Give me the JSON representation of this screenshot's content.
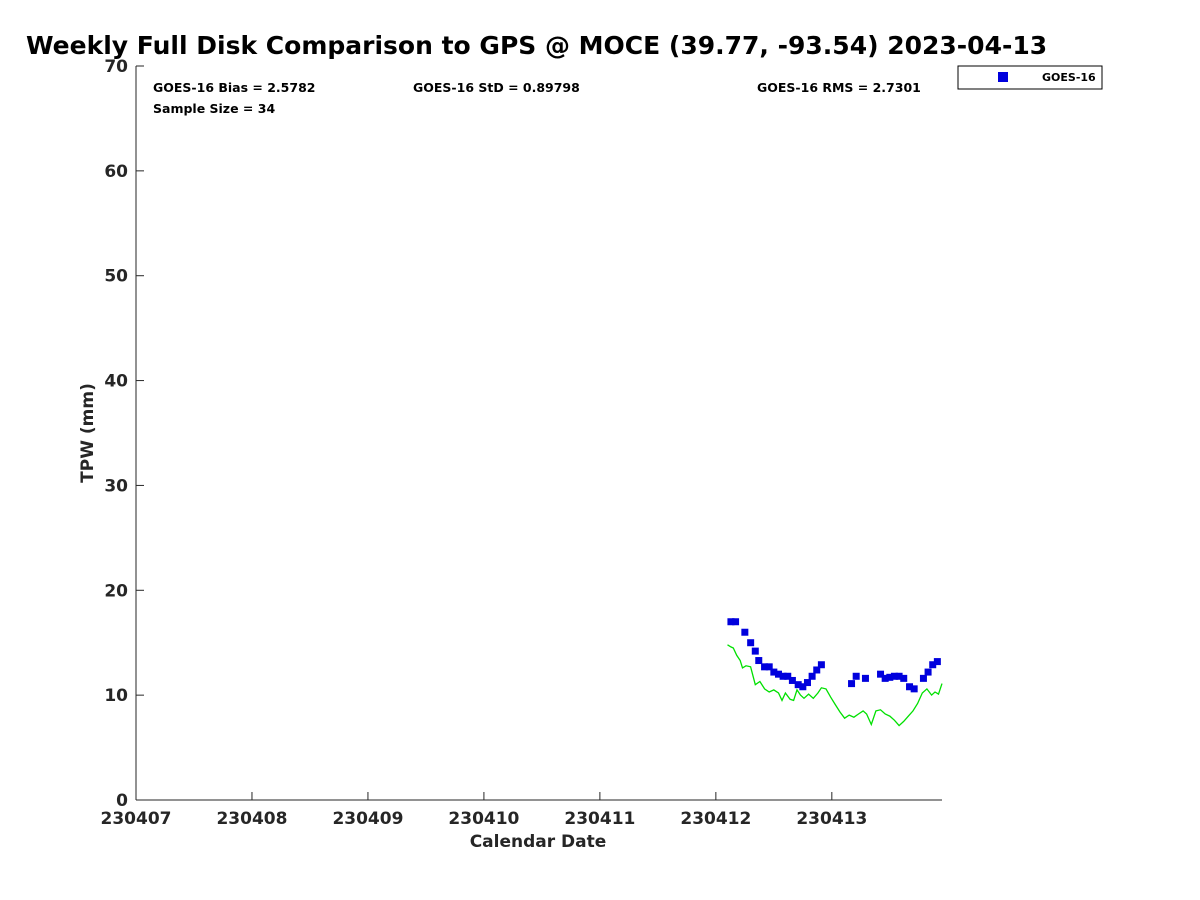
{
  "chart_data": {
    "type": "scatter",
    "title": "Weekly Full Disk Comparison to GPS @ MOCE (39.77, -93.54) 2023-04-13",
    "xlabel": "Calendar Date",
    "ylabel": "TPW (mm)",
    "xlim": [
      230407,
      230413.95
    ],
    "ylim": [
      0,
      70
    ],
    "x_ticks": [
      {
        "value": 230407,
        "label": "230407"
      },
      {
        "value": 230408,
        "label": "230408"
      },
      {
        "value": 230409,
        "label": "230409"
      },
      {
        "value": 230410,
        "label": "230410"
      },
      {
        "value": 230411,
        "label": "230411"
      },
      {
        "value": 230412,
        "label": "230412"
      },
      {
        "value": 230413,
        "label": "230413"
      }
    ],
    "y_ticks": [
      {
        "value": 0,
        "label": "0"
      },
      {
        "value": 10,
        "label": "10"
      },
      {
        "value": 20,
        "label": "20"
      },
      {
        "value": 30,
        "label": "30"
      },
      {
        "value": 40,
        "label": "40"
      },
      {
        "value": 50,
        "label": "50"
      },
      {
        "value": 60,
        "label": "60"
      },
      {
        "value": 70,
        "label": "70"
      }
    ],
    "grid": false,
    "legend": {
      "placement": "outside-top-right"
    },
    "stats": {
      "bias": "GOES-16 Bias = 2.5782",
      "std": "GOES-16 StD = 0.89798",
      "rms": "GOES-16 RMS = 2.7301",
      "sample": "Sample Size = 34"
    },
    "series": [
      {
        "name": "GOES-16",
        "color": "#0000dd",
        "marker": "square",
        "points": [
          [
            230412.13,
            17.0
          ],
          [
            230412.17,
            17.0
          ],
          [
            230412.25,
            16.0
          ],
          [
            230412.3,
            15.0
          ],
          [
            230412.34,
            14.2
          ],
          [
            230412.37,
            13.3
          ],
          [
            230412.42,
            12.7
          ],
          [
            230412.46,
            12.7
          ],
          [
            230412.5,
            12.2
          ],
          [
            230412.54,
            12.0
          ],
          [
            230412.58,
            11.8
          ],
          [
            230412.62,
            11.8
          ],
          [
            230412.66,
            11.4
          ],
          [
            230412.71,
            11.0
          ],
          [
            230412.75,
            10.8
          ],
          [
            230412.79,
            11.2
          ],
          [
            230412.83,
            11.8
          ],
          [
            230412.87,
            12.4
          ],
          [
            230412.91,
            12.9
          ],
          [
            230413.17,
            11.1
          ],
          [
            230413.21,
            11.8
          ],
          [
            230413.29,
            11.6
          ],
          [
            230413.42,
            12.0
          ],
          [
            230413.46,
            11.6
          ],
          [
            230413.5,
            11.7
          ],
          [
            230413.54,
            11.8
          ],
          [
            230413.58,
            11.8
          ],
          [
            230413.62,
            11.6
          ],
          [
            230413.67,
            10.8
          ],
          [
            230413.71,
            10.6
          ],
          [
            230413.79,
            11.6
          ],
          [
            230413.83,
            12.2
          ],
          [
            230413.87,
            12.9
          ],
          [
            230413.91,
            13.2
          ]
        ]
      },
      {
        "name": "",
        "color": "#00e000",
        "marker": "line",
        "points": [
          [
            230412.1,
            14.8
          ],
          [
            230412.13,
            14.6
          ],
          [
            230412.15,
            14.5
          ],
          [
            230412.18,
            13.8
          ],
          [
            230412.21,
            13.3
          ],
          [
            230412.23,
            12.6
          ],
          [
            230412.26,
            12.8
          ],
          [
            230412.3,
            12.7
          ],
          [
            230412.34,
            11.0
          ],
          [
            230412.38,
            11.3
          ],
          [
            230412.42,
            10.6
          ],
          [
            230412.46,
            10.3
          ],
          [
            230412.5,
            10.5
          ],
          [
            230412.54,
            10.2
          ],
          [
            230412.57,
            9.5
          ],
          [
            230412.6,
            10.2
          ],
          [
            230412.64,
            9.6
          ],
          [
            230412.67,
            9.5
          ],
          [
            230412.7,
            10.5
          ],
          [
            230412.73,
            10.0
          ],
          [
            230412.76,
            9.7
          ],
          [
            230412.8,
            10.1
          ],
          [
            230412.84,
            9.7
          ],
          [
            230412.88,
            10.2
          ],
          [
            230412.91,
            10.7
          ],
          [
            230412.95,
            10.6
          ],
          [
            230412.99,
            9.8
          ],
          [
            230413.03,
            9.1
          ],
          [
            230413.07,
            8.4
          ],
          [
            230413.11,
            7.8
          ],
          [
            230413.15,
            8.1
          ],
          [
            230413.19,
            7.9
          ],
          [
            230413.23,
            8.2
          ],
          [
            230413.27,
            8.5
          ],
          [
            230413.3,
            8.2
          ],
          [
            230413.34,
            7.2
          ],
          [
            230413.38,
            8.5
          ],
          [
            230413.42,
            8.6
          ],
          [
            230413.46,
            8.2
          ],
          [
            230413.5,
            8.0
          ],
          [
            230413.54,
            7.6
          ],
          [
            230413.58,
            7.1
          ],
          [
            230413.62,
            7.5
          ],
          [
            230413.66,
            8.0
          ],
          [
            230413.7,
            8.5
          ],
          [
            230413.74,
            9.2
          ],
          [
            230413.78,
            10.2
          ],
          [
            230413.82,
            10.6
          ],
          [
            230413.86,
            10.0
          ],
          [
            230413.89,
            10.3
          ],
          [
            230413.92,
            10.1
          ],
          [
            230413.95,
            11.1
          ]
        ]
      }
    ]
  }
}
